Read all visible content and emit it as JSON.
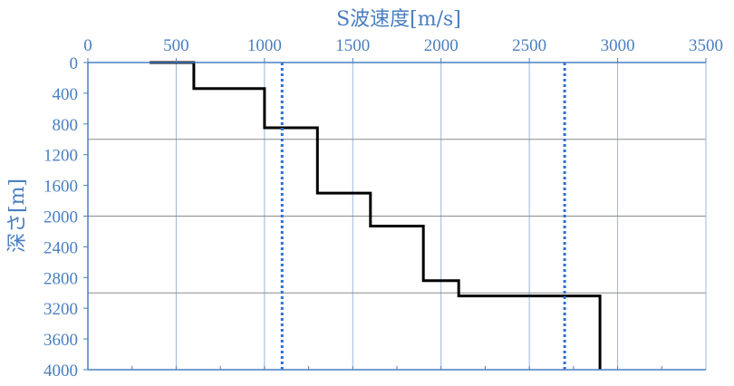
{
  "chart_data": {
    "type": "line",
    "xlabel": "S波速度[m/s]",
    "ylabel": "深さ[m]",
    "x_ticks": [
      0,
      500,
      1000,
      1500,
      2000,
      2500,
      3000,
      3500
    ],
    "y_ticks": [
      0,
      400,
      800,
      1200,
      1600,
      2000,
      2400,
      2800,
      3200,
      3600,
      4000
    ],
    "xlim": [
      0,
      3500
    ],
    "ylim": [
      0,
      4000
    ],
    "y_inverted": true,
    "x_axis_position": "top",
    "grid": {
      "x_major_every": 500,
      "y_major_every": 1000
    },
    "series": [
      {
        "color": "#000000",
        "style": "step",
        "points": [
          [
            350,
            0
          ],
          [
            600,
            0
          ],
          [
            600,
            340
          ],
          [
            1000,
            340
          ],
          [
            1000,
            850
          ],
          [
            1300,
            850
          ],
          [
            1300,
            1700
          ],
          [
            1600,
            1700
          ],
          [
            1600,
            2130
          ],
          [
            1900,
            2130
          ],
          [
            1900,
            2840
          ],
          [
            2100,
            2840
          ],
          [
            2100,
            3040
          ],
          [
            2900,
            3040
          ],
          [
            2900,
            4000
          ]
        ]
      },
      {
        "color": "#2f6fd0",
        "style": "dotted",
        "points": [
          [
            1100,
            0
          ],
          [
            1100,
            4000
          ]
        ]
      },
      {
        "color": "#2f6fd0",
        "style": "dotted",
        "points": [
          [
            2700,
            0
          ],
          [
            2700,
            4000
          ]
        ]
      }
    ]
  }
}
